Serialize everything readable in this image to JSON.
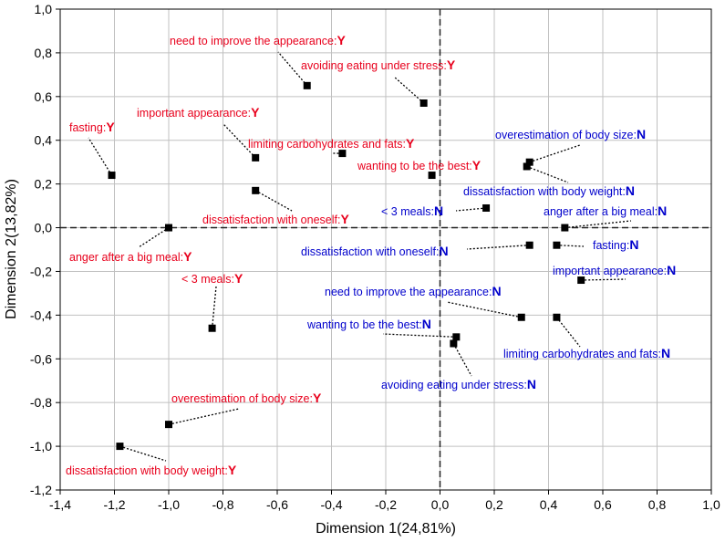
{
  "chart_data": {
    "type": "scatter",
    "xlabel": "Dimension 1(24,81%)",
    "ylabel": "Dimension 2(13,82%)",
    "xlim": [
      -1.4,
      1.0
    ],
    "ylim": [
      -1.2,
      1.0
    ],
    "x_ticks": [
      -1.4,
      -1.2,
      -1.0,
      -0.8,
      -0.6,
      -0.4,
      -0.2,
      0.0,
      0.2,
      0.4,
      0.6,
      0.8,
      1.0
    ],
    "y_ticks": [
      -1.2,
      -1.0,
      -0.8,
      -0.6,
      -0.4,
      -0.2,
      0.0,
      0.2,
      0.4,
      0.6,
      0.8,
      1.0
    ],
    "x_tick_labels": [
      "-1,4",
      "-1,2",
      "-1,0",
      "-0,8",
      "-0,6",
      "-0,4",
      "-0,2",
      "0,0",
      "0,2",
      "0,4",
      "0,6",
      "0,8",
      "1,0"
    ],
    "y_tick_labels": [
      "-1,2",
      "-1,0",
      "-0,8",
      "-0,6",
      "-0,4",
      "-0,2",
      "0,0",
      "0,2",
      "0,4",
      "0,6",
      "0,8",
      "1,0"
    ],
    "grid": true,
    "reference_lines": {
      "x": 0.0,
      "y": 0.0,
      "style": "dashed"
    },
    "colors": {
      "Y": "#e8001c",
      "N": "#0000cc",
      "marker": "#000000",
      "grid": "#c0c0c0"
    },
    "series": [
      {
        "category": "Y",
        "points": [
          {
            "label": "need to improve the appearance:",
            "suffix": "Y",
            "x": -0.49,
            "y": 0.65
          },
          {
            "label": "avoiding eating under stress:",
            "suffix": "Y",
            "x": -0.06,
            "y": 0.57
          },
          {
            "label": "important appearance:",
            "suffix": "Y",
            "x": -0.68,
            "y": 0.32
          },
          {
            "label": "fasting:",
            "suffix": "Y",
            "x": -1.21,
            "y": 0.24
          },
          {
            "label": "limiting carbohydrates and fats:",
            "suffix": "Y",
            "x": -0.36,
            "y": 0.34
          },
          {
            "label": "wanting to be the best:",
            "suffix": "Y",
            "x": -0.03,
            "y": 0.24
          },
          {
            "label": "dissatisfaction with oneself:",
            "suffix": "Y",
            "x": -0.68,
            "y": 0.17
          },
          {
            "label": "anger after a big meal:",
            "suffix": "Y",
            "x": -1.0,
            "y": 0.0
          },
          {
            "label": "< 3 meals:",
            "suffix": "Y",
            "x": -0.84,
            "y": -0.46
          },
          {
            "label": "overestimation of body size:",
            "suffix": "Y",
            "x": -1.0,
            "y": -0.9
          },
          {
            "label": "dissatisfaction with body weight:",
            "suffix": "Y",
            "x": -1.18,
            "y": -1.0
          }
        ]
      },
      {
        "category": "N",
        "points": [
          {
            "label": "overestimation of body size:",
            "suffix": "N",
            "x": 0.33,
            "y": 0.3
          },
          {
            "label": "dissatisfaction with body weight:",
            "suffix": "N",
            "x": 0.32,
            "y": 0.28
          },
          {
            "label": "< 3 meals:",
            "suffix": "N",
            "x": 0.17,
            "y": 0.09
          },
          {
            "label": "anger after a big meal:",
            "suffix": "N",
            "x": 0.46,
            "y": 0.0
          },
          {
            "label": "dissatisfaction with oneself:",
            "suffix": "N",
            "x": 0.33,
            "y": -0.08
          },
          {
            "label": "fasting:",
            "suffix": "N",
            "x": 0.43,
            "y": -0.08
          },
          {
            "label": "important appearance:",
            "suffix": "N",
            "x": 0.52,
            "y": -0.24
          },
          {
            "label": "need to improve the appearance:",
            "suffix": "N",
            "x": 0.3,
            "y": -0.41
          },
          {
            "label": "limiting carbohydrates and fats:",
            "suffix": "N",
            "x": 0.43,
            "y": -0.41
          },
          {
            "label": "wanting to be the best:",
            "suffix": "N",
            "x": 0.06,
            "y": -0.5
          },
          {
            "label": "avoiding eating under stress:",
            "suffix": "N",
            "x": 0.05,
            "y": -0.53
          }
        ]
      }
    ]
  }
}
